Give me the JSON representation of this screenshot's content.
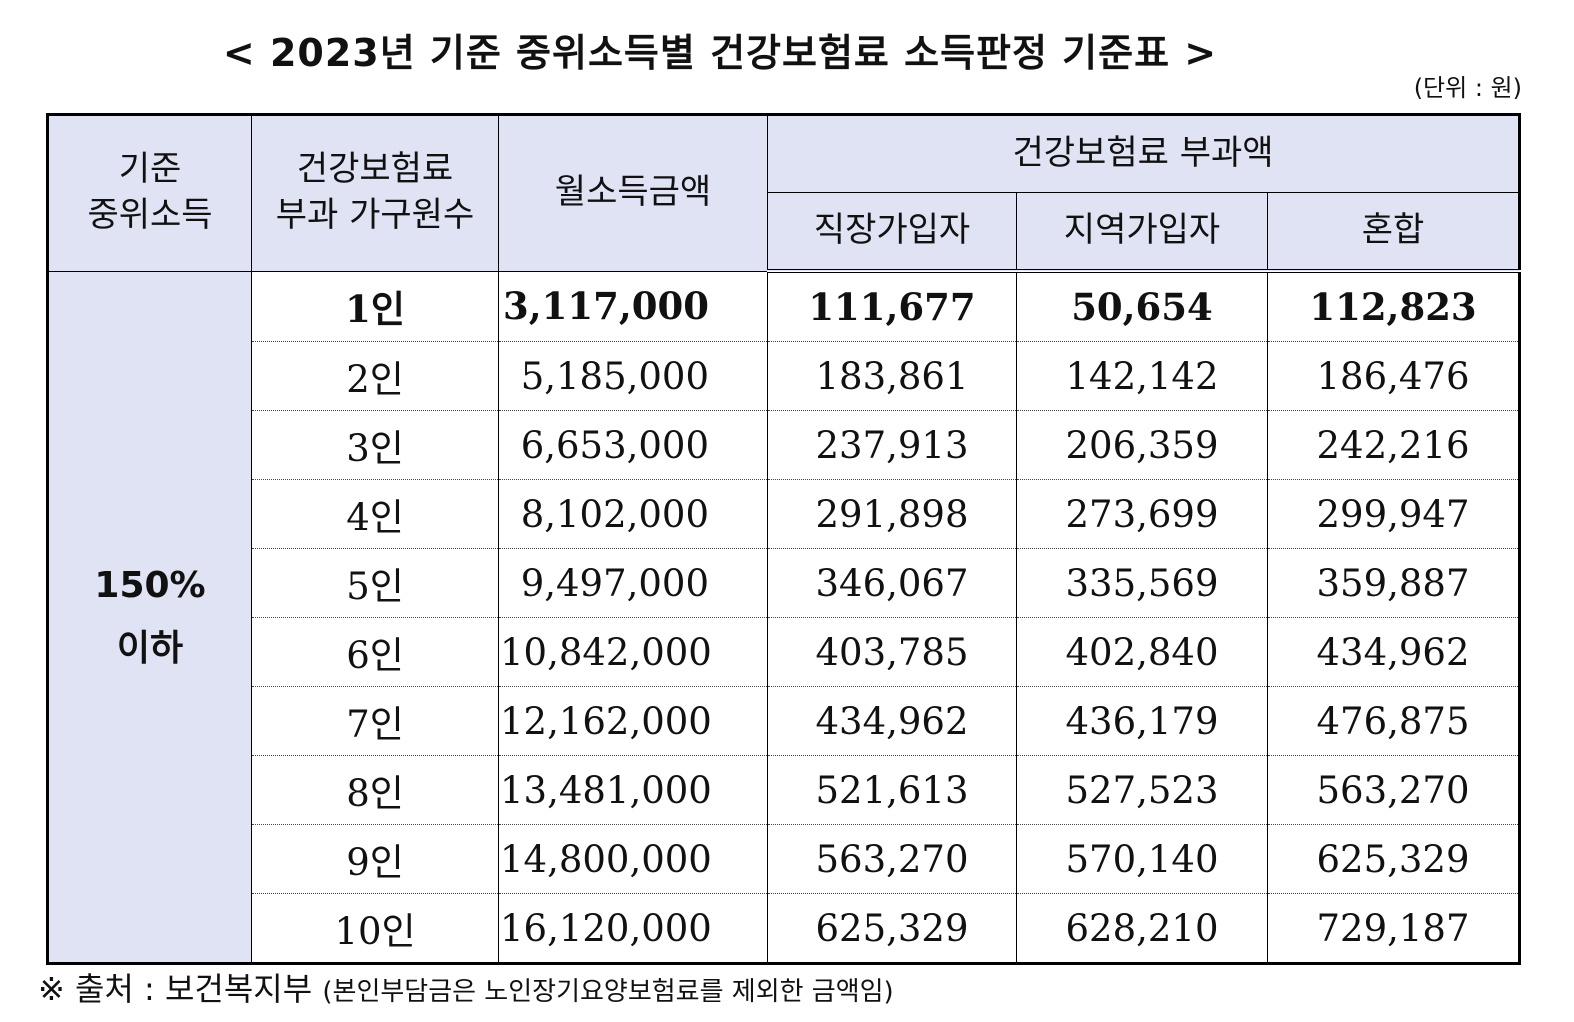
{
  "title": "< 2023년 기준 중위소득별 건강보험료 소득판정 기준표 >",
  "unit": "(단위 : 원)",
  "headers": {
    "col1": "기준\n중위소득",
    "col1_line1": "기준",
    "col1_line2": "중위소득",
    "col2_line1": "건강보험료",
    "col2_line2": "부과 가구원수",
    "col3": "월소득금액",
    "group": "건강보험료 부과액",
    "sub1": "직장가입자",
    "sub2": "지역가입자",
    "sub3": "혼합"
  },
  "group_label_line1": "150%",
  "group_label_line2": "이하",
  "rows": [
    {
      "members": "1인",
      "income": "3,117,000",
      "employee": "111,677",
      "regional": "50,654",
      "mixed": "112,823"
    },
    {
      "members": "2인",
      "income": "5,185,000",
      "employee": "183,861",
      "regional": "142,142",
      "mixed": "186,476"
    },
    {
      "members": "3인",
      "income": "6,653,000",
      "employee": "237,913",
      "regional": "206,359",
      "mixed": "242,216"
    },
    {
      "members": "4인",
      "income": "8,102,000",
      "employee": "291,898",
      "regional": "273,699",
      "mixed": "299,947"
    },
    {
      "members": "5인",
      "income": "9,497,000",
      "employee": "346,067",
      "regional": "335,569",
      "mixed": "359,887"
    },
    {
      "members": "6인",
      "income": "10,842,000",
      "employee": "403,785",
      "regional": "402,840",
      "mixed": "434,962"
    },
    {
      "members": "7인",
      "income": "12,162,000",
      "employee": "434,962",
      "regional": "436,179",
      "mixed": "476,875"
    },
    {
      "members": "8인",
      "income": "13,481,000",
      "employee": "521,613",
      "regional": "527,523",
      "mixed": "563,270"
    },
    {
      "members": "9인",
      "income": "14,800,000",
      "employee": "563,270",
      "regional": "570,140",
      "mixed": "625,329"
    },
    {
      "members": "10인",
      "income": "16,120,000",
      "employee": "625,329",
      "regional": "628,210",
      "mixed": "729,187"
    }
  ],
  "footnote": {
    "main": "※ 출처 : 보건복지부",
    "detail": "(본인부담금은 노인장기요양보험료를 제외한 금액임)"
  }
}
